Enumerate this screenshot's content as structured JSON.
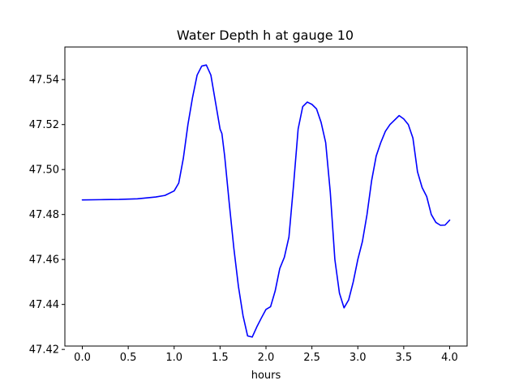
{
  "chart_data": {
    "type": "line",
    "title": "Water Depth h at gauge 10",
    "xlabel": "hours",
    "ylabel": "",
    "xlim": [
      -0.19,
      4.19
    ],
    "ylim": [
      47.4215,
      47.5545
    ],
    "xticks": [
      0.0,
      0.5,
      1.0,
      1.5,
      2.0,
      2.5,
      3.0,
      3.5,
      4.0
    ],
    "xtick_labels": [
      "0.0",
      "0.5",
      "1.0",
      "1.5",
      "2.0",
      "2.5",
      "3.0",
      "3.5",
      "4.0"
    ],
    "yticks": [
      47.42,
      47.44,
      47.46,
      47.48,
      47.5,
      47.52,
      47.54
    ],
    "ytick_labels": [
      "47.42",
      "47.44",
      "47.46",
      "47.48",
      "47.50",
      "47.52",
      "47.54"
    ],
    "grid": false,
    "legend": "none",
    "series": [
      {
        "color": "#0000ff",
        "x": [
          0.0,
          0.2,
          0.4,
          0.6,
          0.8,
          0.9,
          1.0,
          1.05,
          1.1,
          1.15,
          1.2,
          1.25,
          1.3,
          1.35,
          1.4,
          1.45,
          1.5,
          1.52,
          1.55,
          1.6,
          1.65,
          1.7,
          1.75,
          1.8,
          1.85,
          1.9,
          1.95,
          2.0,
          2.05,
          2.1,
          2.15,
          2.2,
          2.25,
          2.3,
          2.35,
          2.4,
          2.45,
          2.5,
          2.55,
          2.6,
          2.65,
          2.7,
          2.75,
          2.8,
          2.85,
          2.9,
          2.95,
          3.0,
          3.05,
          3.1,
          3.15,
          3.2,
          3.25,
          3.3,
          3.35,
          3.4,
          3.45,
          3.5,
          3.55,
          3.6,
          3.65,
          3.7,
          3.75,
          3.8,
          3.85,
          3.9,
          3.95,
          4.0
        ],
        "y": [
          47.4865,
          47.4866,
          47.4867,
          47.487,
          47.4878,
          47.4885,
          47.4905,
          47.494,
          47.505,
          47.52,
          47.532,
          47.542,
          47.546,
          47.5465,
          47.542,
          47.53,
          47.518,
          47.516,
          47.506,
          47.485,
          47.465,
          47.448,
          47.435,
          47.426,
          47.4255,
          47.43,
          47.434,
          47.4378,
          47.439,
          47.446,
          47.456,
          47.461,
          47.47,
          47.493,
          47.518,
          47.528,
          47.53,
          47.529,
          47.527,
          47.521,
          47.512,
          47.49,
          47.46,
          47.445,
          47.4385,
          47.442,
          47.45,
          47.46,
          47.468,
          47.48,
          47.495,
          47.506,
          47.512,
          47.517,
          47.52,
          47.522,
          47.524,
          47.5225,
          47.52,
          47.514,
          47.499,
          47.492,
          47.488,
          47.48,
          47.4765,
          47.4752,
          47.4753,
          47.4775
        ]
      }
    ]
  }
}
